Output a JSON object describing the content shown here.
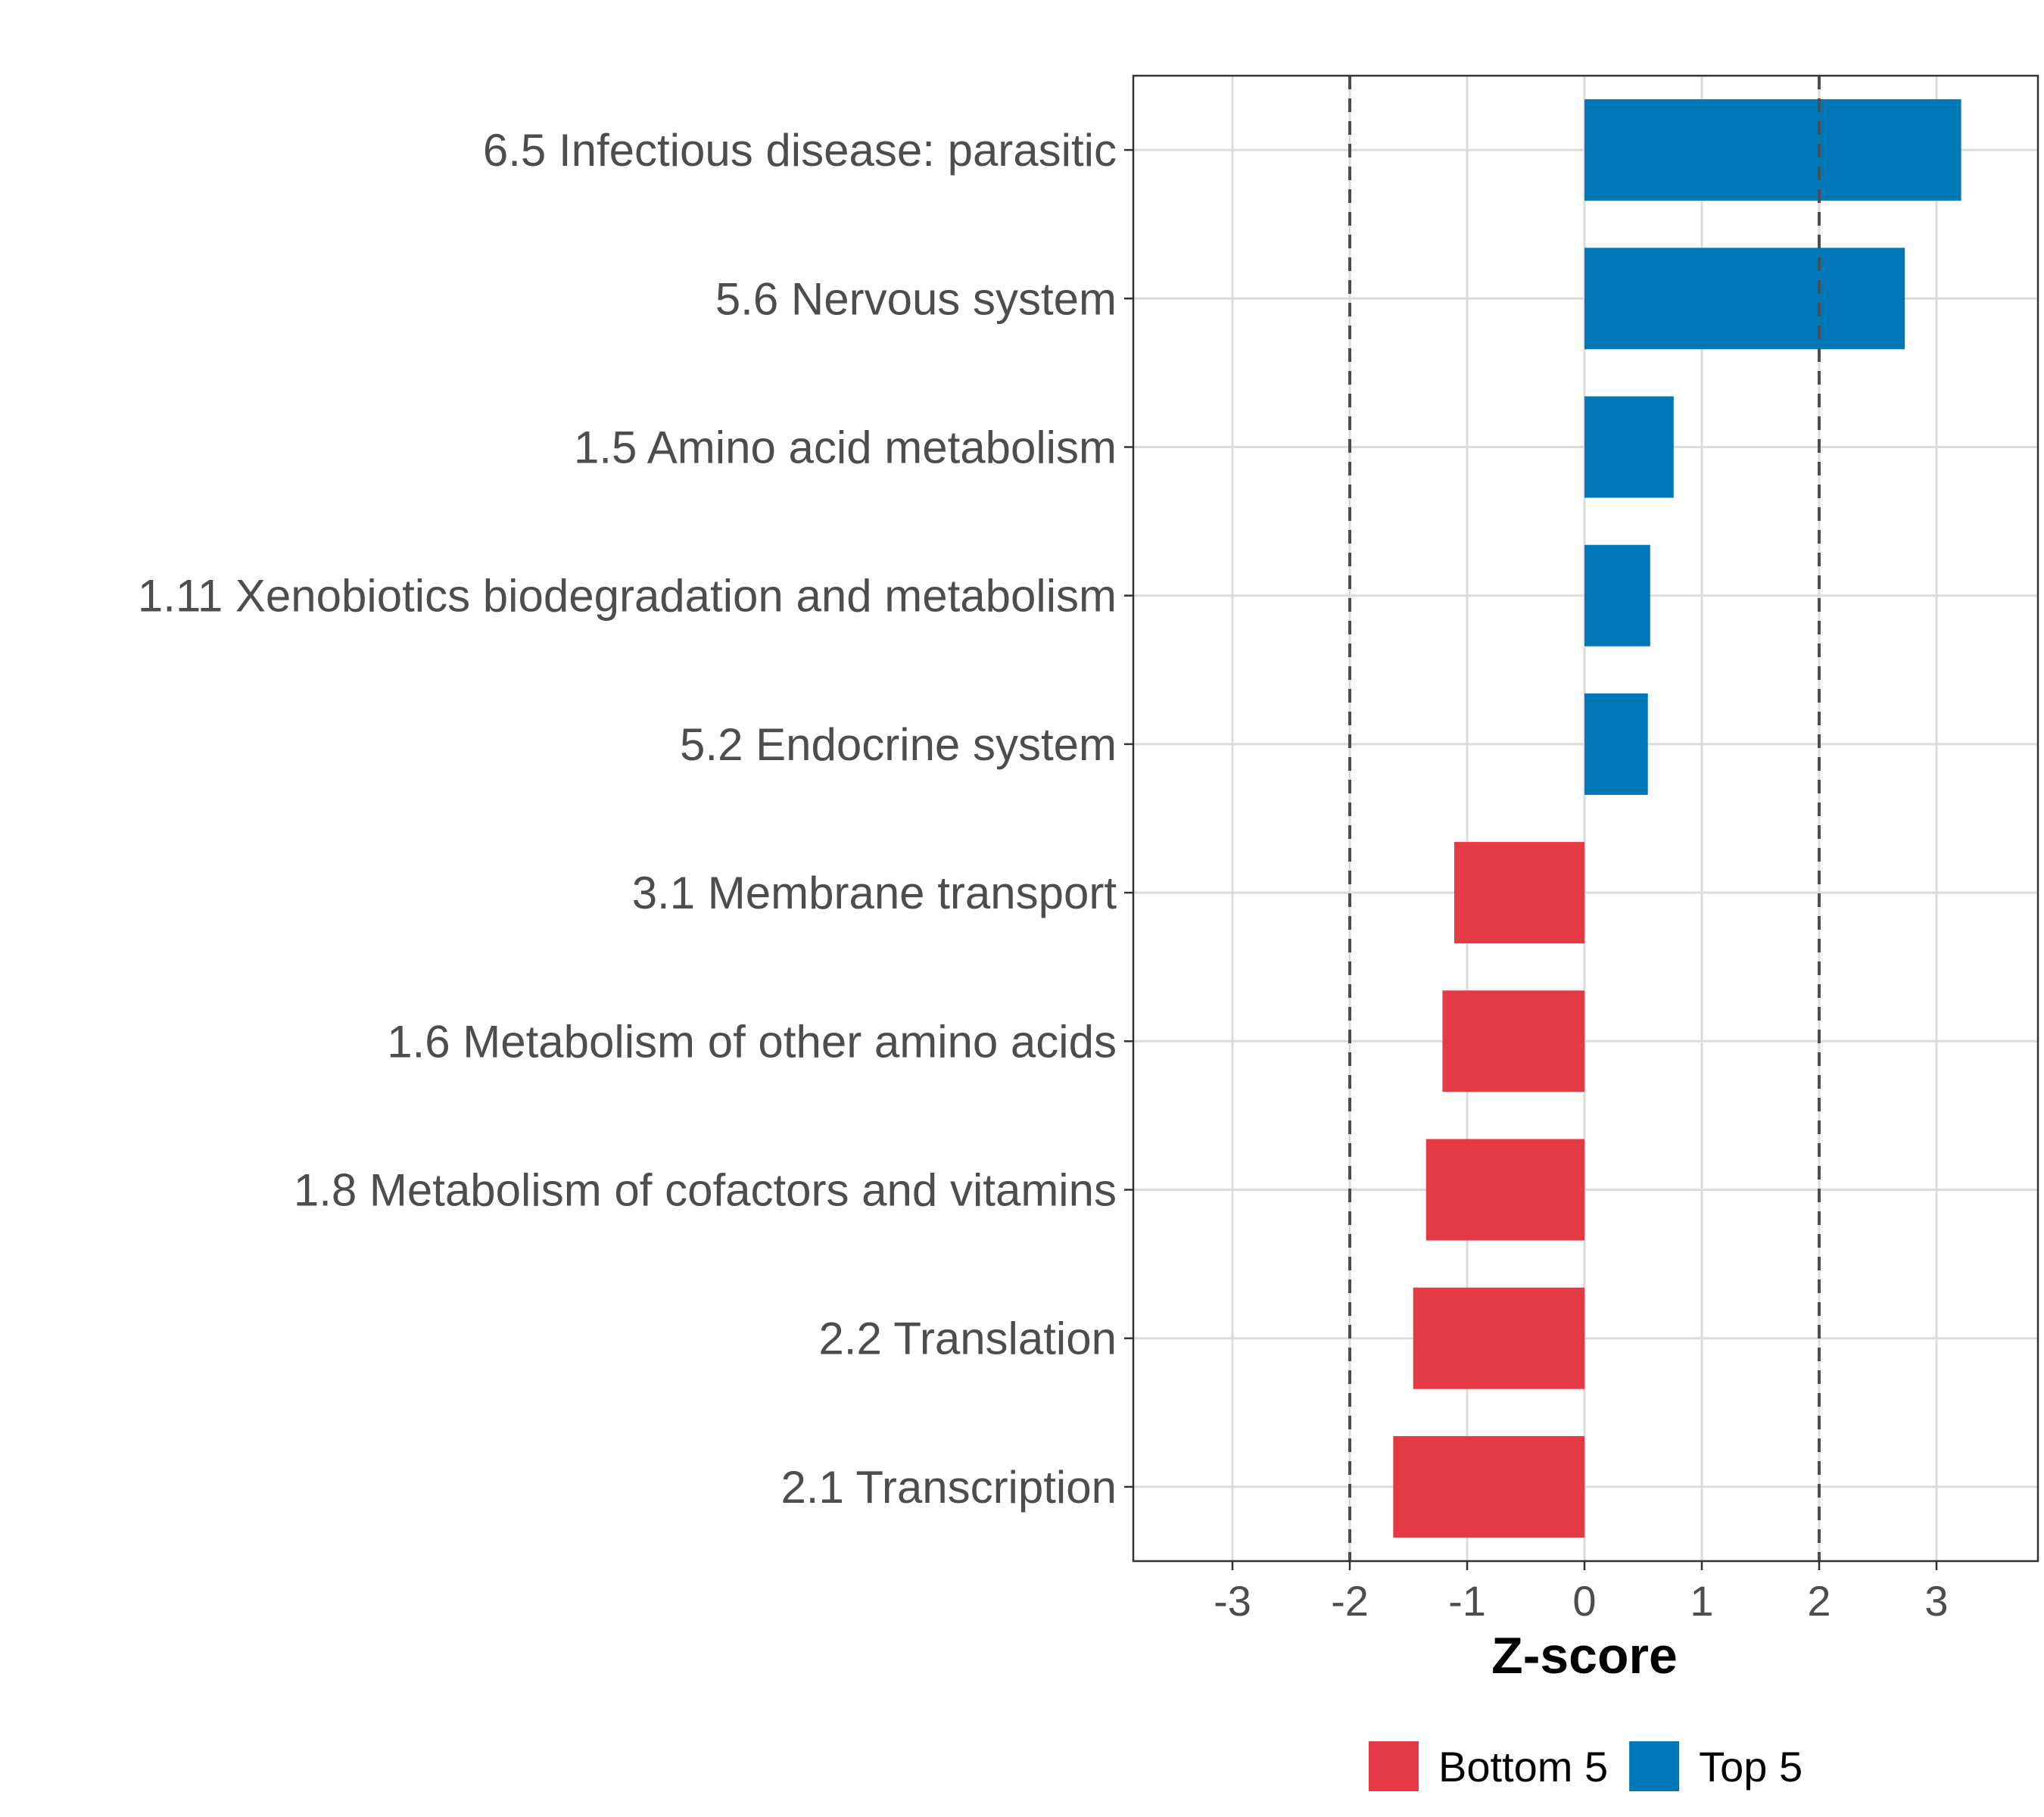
{
  "chart_data": {
    "type": "bar",
    "orientation": "horizontal",
    "title": "",
    "xlabel": "Z-score",
    "ylabel": "",
    "xlim": [
      -3.85,
      3.85
    ],
    "x_ticks": [
      -3,
      -2,
      -1,
      0,
      1,
      2,
      3
    ],
    "x_tick_labels": [
      "-3",
      "-2",
      "-1",
      "0",
      "1",
      "2",
      "3"
    ],
    "reference_lines": [
      -2,
      2
    ],
    "grid": true,
    "categories": [
      "6.5 Infectious disease: parasitic",
      "5.6 Nervous system",
      "1.5 Amino acid metabolism",
      "1.11 Xenobiotics biodegradation and metabolism",
      "5.2 Endocrine system",
      "3.1 Membrane transport",
      "1.6 Metabolism of other amino acids",
      "1.8 Metabolism of cofactors and vitamins",
      "2.2 Translation",
      "2.1 Transcription"
    ],
    "values": [
      3.21,
      2.73,
      0.76,
      0.56,
      0.54,
      -1.11,
      -1.21,
      -1.35,
      -1.46,
      -1.63
    ],
    "groups": [
      "Top 5",
      "Top 5",
      "Top 5",
      "Top 5",
      "Top 5",
      "Bottom 5",
      "Bottom 5",
      "Bottom 5",
      "Bottom 5",
      "Bottom 5"
    ],
    "legend": [
      {
        "name": "Bottom 5",
        "color": "#E63946"
      },
      {
        "name": "Top 5",
        "color": "#0077B6"
      }
    ],
    "legend_position": "bottom"
  }
}
